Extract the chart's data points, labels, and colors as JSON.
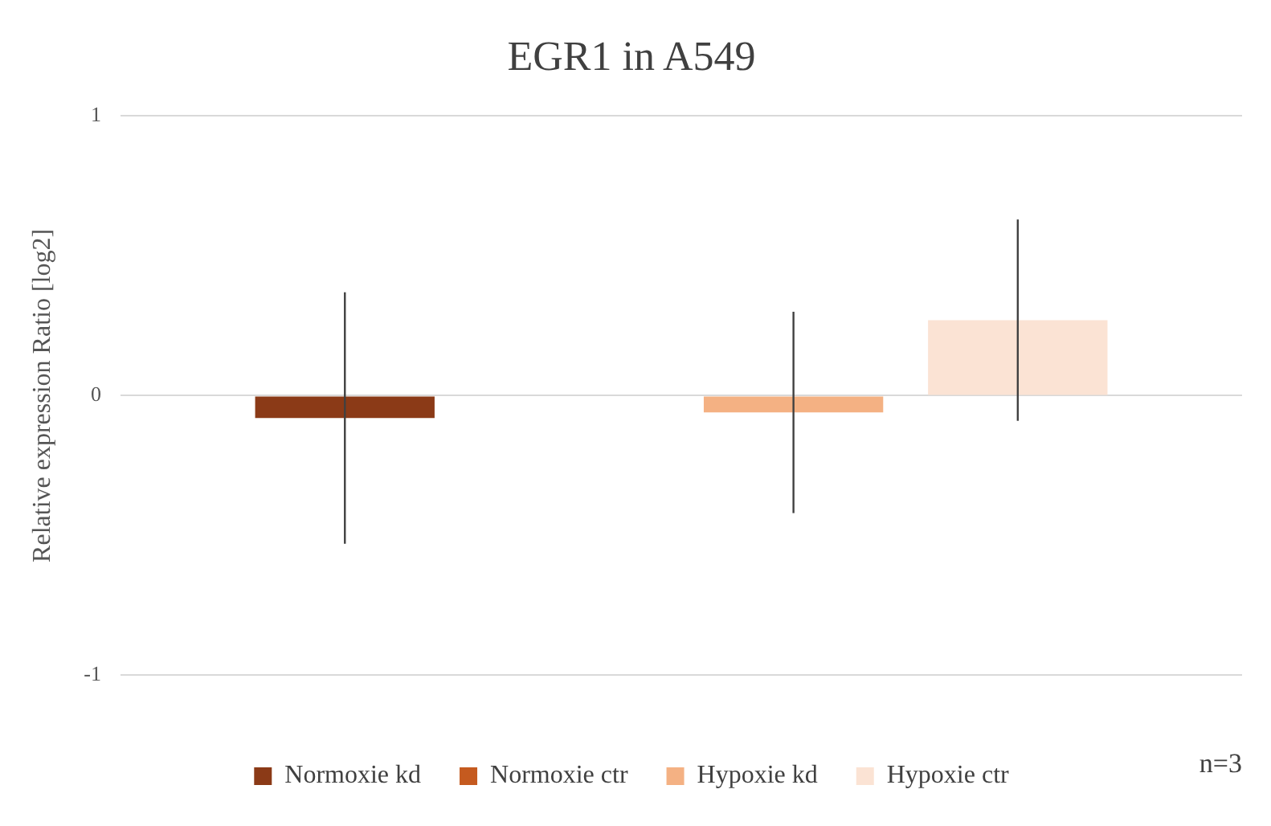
{
  "chart_data": {
    "type": "bar",
    "title": "EGR1 in A549",
    "ylabel": "Relative expression Ratio [log2]",
    "categories": [
      null
    ],
    "series": [
      {
        "name": "Normoxie kd",
        "color": "#8b3a17",
        "values": [
          -0.08
        ],
        "errors": [
          0.45
        ]
      },
      {
        "name": "Normoxie ctr",
        "color": "#c55a1f",
        "values": [
          0
        ],
        "errors": [
          null
        ]
      },
      {
        "name": "Hypoxie kd",
        "color": "#f4b183",
        "values": [
          -0.06
        ],
        "errors": [
          0.36
        ]
      },
      {
        "name": "Hypoxie ctr",
        "color": "#fbe3d4",
        "values": [
          0.27
        ],
        "errors": [
          0.36
        ]
      }
    ],
    "ylim": [
      -1,
      1
    ],
    "yticks": [
      -1,
      0,
      1
    ],
    "grid": "y",
    "legend": "bottom",
    "annotations": [
      "n=3"
    ]
  }
}
